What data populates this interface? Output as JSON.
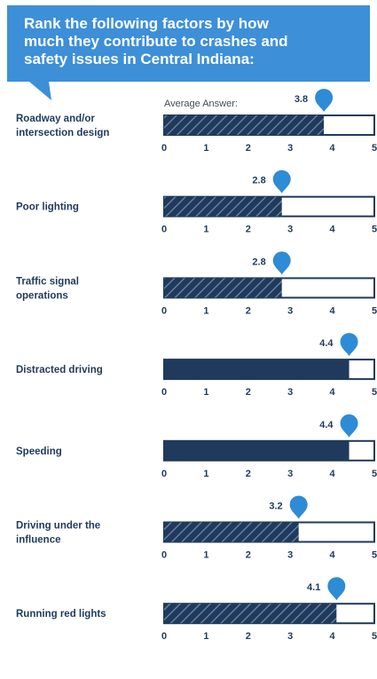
{
  "title": {
    "lines": [
      "Rank the following factors by how",
      "much they contribute to crashes and",
      "safety issues in Central Indiana:"
    ]
  },
  "average_caption": "Average Answer:",
  "colors": {
    "banner": "#3d8fd8",
    "bar_solid": "#1f3a5c",
    "bar_hatch_bg": "#1f3a5c",
    "hatch_line": "#6f88a5",
    "pin": "#2e8bd6",
    "text": "#1f3a5c"
  },
  "chart_data": {
    "type": "bar",
    "orientation": "horizontal",
    "categories": [
      [
        "Roadway and/or",
        "intersection design"
      ],
      [
        "Poor lighting"
      ],
      [
        "Traffic signal",
        "operations"
      ],
      [
        "Distracted driving"
      ],
      [
        "Speeding"
      ],
      [
        "Driving under the",
        "influence"
      ],
      [
        "Running red lights"
      ]
    ],
    "values": [
      3.8,
      2.8,
      2.8,
      4.4,
      4.4,
      3.2,
      4.1
    ],
    "value_labels": [
      "3.8",
      "2.8",
      "2.8",
      "4.4",
      "4.4",
      "3.2",
      "4.1"
    ],
    "styles": [
      "hatched",
      "hatched",
      "hatched",
      "solid",
      "solid",
      "hatched",
      "hatched"
    ],
    "xlim": [
      0,
      5
    ],
    "x_ticks": [
      "0",
      "1",
      "2",
      "3",
      "4",
      "5"
    ],
    "title": "Rank the following factors by how much they contribute to crashes and safety issues in Central Indiana:",
    "xlabel": "",
    "ylabel": "",
    "grid": false
  }
}
